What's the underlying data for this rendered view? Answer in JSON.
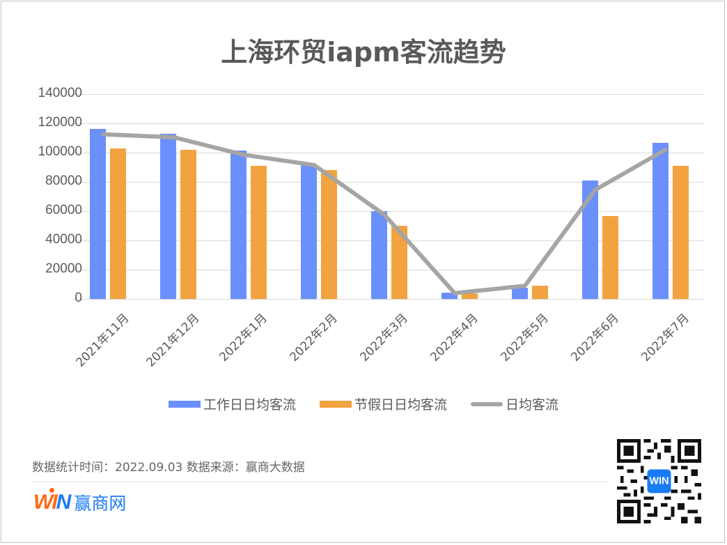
{
  "title": "上海环贸iapm客流趋势",
  "chart_data": {
    "type": "bar",
    "title": "上海环贸iapm客流趋势",
    "xlabel": "",
    "ylabel": "",
    "ylim": [
      0,
      140000
    ],
    "yticks": [
      0,
      20000,
      40000,
      60000,
      80000,
      100000,
      120000,
      140000
    ],
    "grid": true,
    "legend_position": "bottom",
    "categories": [
      "2021年11月",
      "2021年12月",
      "2022年1月",
      "2022年2月",
      "2022年3月",
      "2022年4月",
      "2022年5月",
      "2022年6月",
      "2022年7月"
    ],
    "series": [
      {
        "name": "工作日日均客流",
        "type": "bar",
        "color": "#6b8ffb",
        "values": [
          116000,
          113000,
          101500,
          92000,
          60000,
          4500,
          7500,
          81000,
          106500
        ]
      },
      {
        "name": "节假日日均客流",
        "type": "bar",
        "color": "#f2a33f",
        "values": [
          103000,
          102000,
          91000,
          88000,
          50000,
          4000,
          9000,
          56500,
          91000
        ]
      },
      {
        "name": "日均客流",
        "type": "line",
        "color": "#a5a5a5",
        "values": [
          112500,
          110500,
          98500,
          91500,
          57500,
          4000,
          9000,
          74500,
          102000
        ]
      }
    ]
  },
  "yaxis": {
    "ticks": [
      "140000",
      "120000",
      "100000",
      "80000",
      "60000",
      "40000",
      "20000",
      "0"
    ]
  },
  "legend": {
    "items": [
      {
        "label": "工作日日均客流",
        "color": "#6b8ffb"
      },
      {
        "label": "节假日日均客流",
        "color": "#f2a33f"
      },
      {
        "label": "日均客流",
        "color": "#a5a5a5"
      }
    ]
  },
  "footer": {
    "source_text": "数据统计时间：2022.09.03  数据来源：赢商大数据",
    "logo_win_w": "WI",
    "logo_win_n": "N",
    "logo_text": "赢商网",
    "qr_label": "qr-code"
  }
}
